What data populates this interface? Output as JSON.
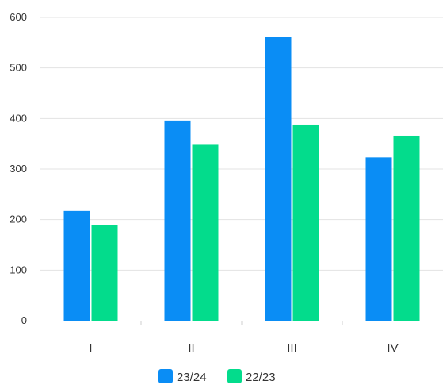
{
  "chart_data": {
    "type": "bar",
    "title": "",
    "xlabel": "",
    "ylabel": "",
    "categories": [
      "I",
      "II",
      "III",
      "IV"
    ],
    "series": [
      {
        "name": "23/24",
        "values": [
          217,
          396,
          561,
          323
        ],
        "color": "#0a8df5"
      },
      {
        "name": "22/23",
        "values": [
          190,
          348,
          388,
          366
        ],
        "color": "#03dc8c"
      }
    ],
    "ylim": [
      0,
      600
    ],
    "yticks": [
      "0",
      "100",
      "200",
      "300",
      "400",
      "500",
      "600"
    ],
    "grid": true,
    "legend_position": "bottom-center"
  }
}
